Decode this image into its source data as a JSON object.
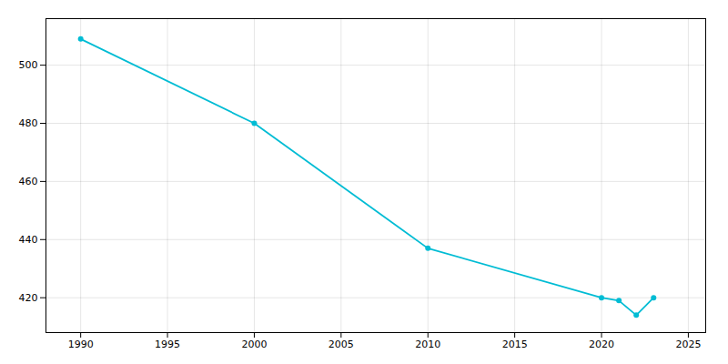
{
  "chart_data": {
    "type": "line",
    "x": [
      1990,
      2000,
      2010,
      2020,
      2021,
      2022,
      2023
    ],
    "values": [
      509,
      480,
      437,
      420,
      419,
      414,
      420
    ],
    "color": "#00bcd4",
    "marker": "circle",
    "xlim": [
      1988,
      2026
    ],
    "ylim": [
      408,
      516
    ],
    "xticks": [
      1990,
      1995,
      2000,
      2005,
      2010,
      2015,
      2020,
      2025
    ],
    "yticks": [
      420,
      440,
      460,
      480,
      500
    ],
    "grid": true
  }
}
